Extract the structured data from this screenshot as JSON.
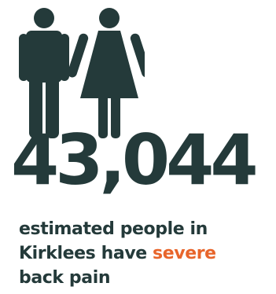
{
  "colors": {
    "primary": "#243a3a",
    "accent": "#e8652b",
    "background": "#ffffff"
  },
  "icons": [
    "male-figure-icon",
    "female-figure-icon"
  ],
  "stat": {
    "value": "43,044"
  },
  "caption": {
    "line1": "estimated people in",
    "line2_prefix": "Kirklees have ",
    "highlight": "severe",
    "line3": "back pain"
  }
}
